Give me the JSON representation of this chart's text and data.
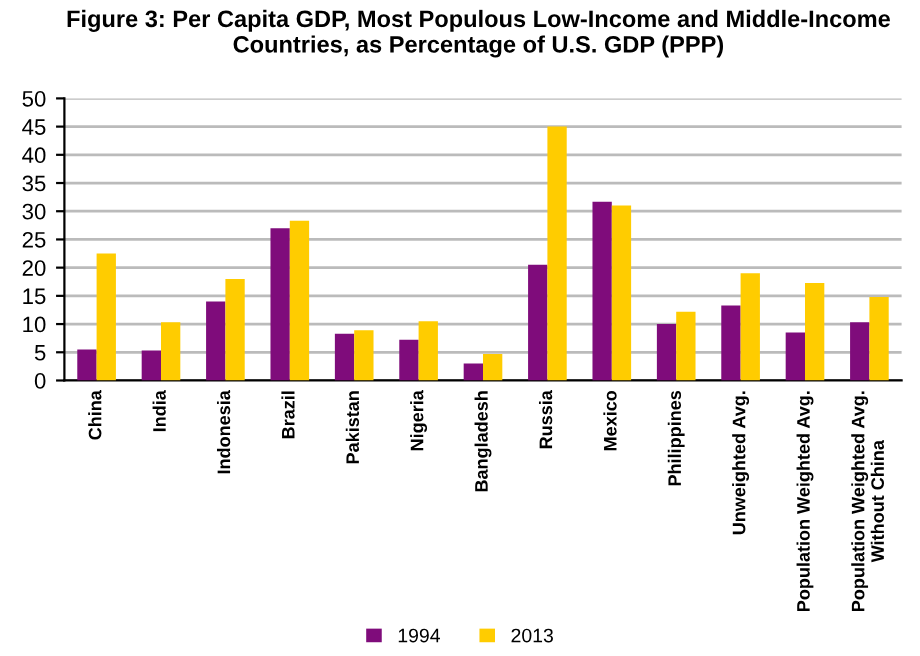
{
  "chart_data": {
    "type": "bar",
    "title": "Figure 3: Per Capita GDP, Most Populous Low-Income and Middle-Income Countries, as Percentage of U.S. GDP (PPP)",
    "categories": [
      "China",
      "India",
      "Indonesia",
      "Brazil",
      "Pakistan",
      "Nigeria",
      "Bangladesh",
      "Russia",
      "Mexico",
      "Philippines",
      "Unweighted Avg.",
      "Population Weighted Avg.",
      "Population Weighted Avg.\nWithout China"
    ],
    "series": [
      {
        "name": "1994",
        "color": "#7f0c7b",
        "values": [
          5.5,
          5.3,
          14,
          27,
          8.3,
          7.2,
          3,
          20.5,
          31.7,
          10,
          13.3,
          8.5,
          10.3
        ]
      },
      {
        "name": "2013",
        "color": "#ffcc00",
        "values": [
          22.5,
          10.3,
          18,
          28.3,
          8.9,
          10.5,
          4.7,
          45,
          31,
          12.2,
          19,
          17.3,
          14.8
        ]
      }
    ],
    "ylim": [
      0,
      50
    ],
    "yticks": [
      0,
      5,
      10,
      15,
      20,
      25,
      30,
      35,
      40,
      45,
      50
    ],
    "grid": "y",
    "legend": "bottom"
  }
}
